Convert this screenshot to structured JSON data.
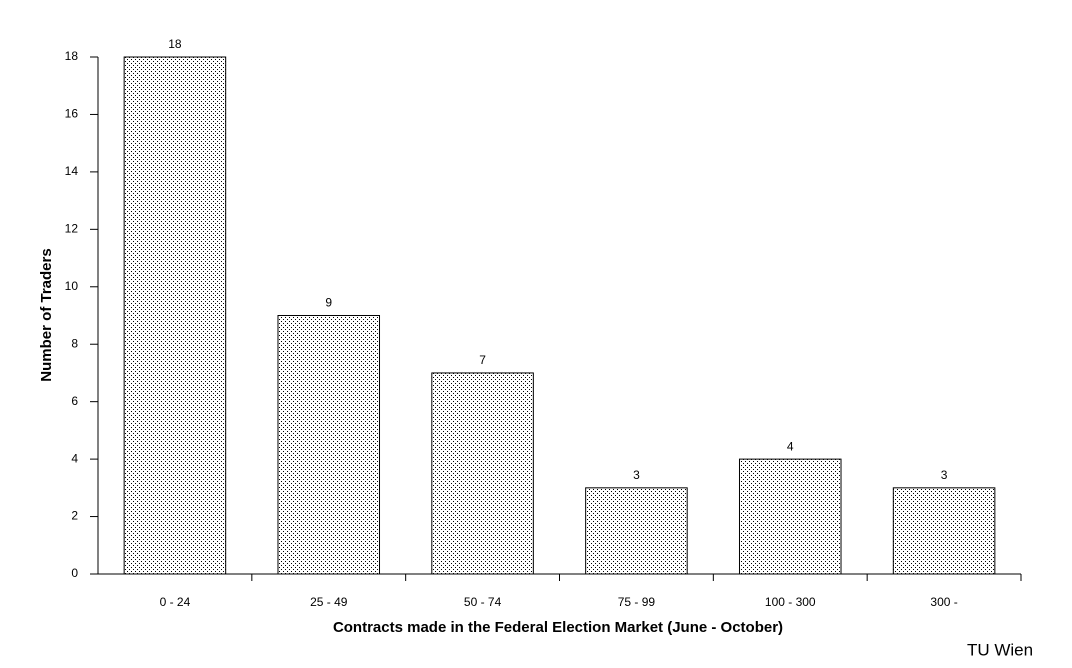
{
  "chart_data": {
    "type": "bar",
    "categories": [
      "0 - 24",
      "25 - 49",
      "50 - 74",
      "75 - 99",
      "100 - 300",
      "300 -"
    ],
    "values": [
      18,
      9,
      7,
      3,
      4,
      3
    ],
    "color": "#ffffff",
    "ylim": [
      0,
      18
    ],
    "yticks": [
      0,
      2,
      4,
      6,
      8,
      10,
      12,
      14,
      16,
      18
    ],
    "x_label": "Contracts made in the Federal Election Market (June - October)",
    "y_label": "Number of Traders",
    "annotation": "TU Wien"
  }
}
